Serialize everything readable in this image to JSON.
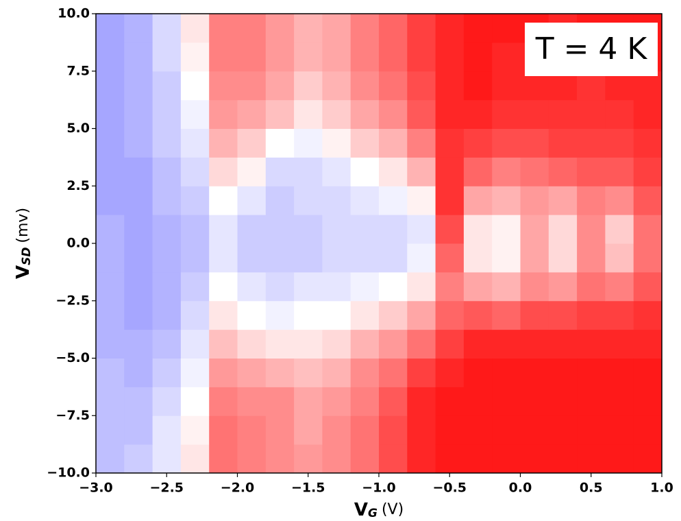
{
  "chart_data": {
    "type": "heatmap",
    "x_label": {
      "symbol": "V",
      "subscript": "G",
      "unit": "(V)"
    },
    "y_label": {
      "symbol": "V",
      "subscript": "SD",
      "unit": "(mv)"
    },
    "annotation": "T = 4 K",
    "xlim": [
      -3,
      1
    ],
    "ylim": [
      -10,
      10
    ],
    "xticks": [
      {
        "value": -3,
        "label": "−3.0"
      },
      {
        "value": -2.5,
        "label": "−2.5"
      },
      {
        "value": -2,
        "label": "−2.0"
      },
      {
        "value": -1.5,
        "label": "−1.5"
      },
      {
        "value": -1,
        "label": "−1.0"
      },
      {
        "value": -0.5,
        "label": "−0.5"
      },
      {
        "value": 0,
        "label": "0.0"
      },
      0.5,
      {
        "value": 1,
        "label": "1.0"
      }
    ],
    "yticks": [
      {
        "value": -10,
        "label": "−10.0"
      },
      {
        "value": -7.5,
        "label": "−7.5"
      },
      {
        "value": -5,
        "label": "−5.0"
      },
      {
        "value": -2.5,
        "label": "−2.5"
      },
      {
        "value": 0,
        "label": "0.0"
      },
      2.5,
      {
        "value": 5,
        "label": "5.0"
      },
      7.5,
      {
        "value": 10,
        "label": "10.0"
      }
    ],
    "colormap": "bwr",
    "zlim": [
      -1,
      1
    ],
    "xbins": [
      -3,
      -2.8,
      -2.6,
      -2.4,
      -2.2,
      -2,
      -1.8,
      -1.6,
      -1.4,
      -1.2,
      -1,
      -0.8,
      -0.6,
      -0.4,
      -0.2,
      0,
      0.2,
      0.4,
      0.6,
      0.8,
      1
    ],
    "ybins": [
      -10,
      -8.75,
      -7.5,
      -6.25,
      -5,
      -3.75,
      -2.5,
      -1.25,
      0,
      1.25,
      2.5,
      3.75,
      5,
      6.25,
      7.5,
      8.75,
      10
    ],
    "z": [
      [
        -0.25,
        -0.2,
        -0.1,
        0.1,
        0.55,
        0.5,
        0.45,
        0.4,
        0.45,
        0.55,
        0.7,
        0.85,
        0.9,
        0.9,
        0.9,
        0.9,
        0.9,
        0.9,
        0.9,
        0.9
      ],
      [
        -0.25,
        -0.25,
        -0.1,
        0.05,
        0.55,
        0.5,
        0.45,
        0.35,
        0.45,
        0.55,
        0.7,
        0.85,
        0.9,
        0.9,
        0.9,
        0.9,
        0.9,
        0.9,
        0.9,
        0.9
      ],
      [
        -0.25,
        -0.25,
        -0.15,
        0.0,
        0.5,
        0.45,
        0.45,
        0.35,
        0.4,
        0.5,
        0.65,
        0.85,
        0.9,
        0.9,
        0.9,
        0.9,
        0.9,
        0.9,
        0.9,
        0.9
      ],
      [
        -0.25,
        -0.3,
        -0.2,
        -0.05,
        0.4,
        0.35,
        0.3,
        0.25,
        0.3,
        0.45,
        0.55,
        0.75,
        0.85,
        0.9,
        0.9,
        0.9,
        0.9,
        0.9,
        0.9,
        0.9
      ],
      [
        -0.3,
        -0.3,
        -0.25,
        -0.1,
        0.25,
        0.15,
        0.1,
        0.1,
        0.15,
        0.3,
        0.4,
        0.55,
        0.75,
        0.85,
        0.85,
        0.85,
        0.85,
        0.85,
        0.85,
        0.85
      ],
      [
        -0.3,
        -0.35,
        -0.3,
        -0.15,
        0.1,
        0.0,
        -0.05,
        0.0,
        0.0,
        0.1,
        0.2,
        0.35,
        0.6,
        0.65,
        0.6,
        0.7,
        0.7,
        0.75,
        0.75,
        0.8
      ],
      [
        -0.3,
        -0.35,
        -0.3,
        -0.2,
        0.0,
        -0.1,
        -0.15,
        -0.1,
        -0.1,
        -0.05,
        0.0,
        0.1,
        0.5,
        0.35,
        0.3,
        0.45,
        0.4,
        0.55,
        0.5,
        0.65
      ],
      [
        -0.3,
        -0.35,
        -0.3,
        -0.25,
        -0.1,
        -0.2,
        -0.2,
        -0.2,
        -0.15,
        -0.15,
        -0.15,
        -0.05,
        0.6,
        0.1,
        0.05,
        0.35,
        0.15,
        0.45,
        0.25,
        0.55
      ],
      [
        -0.3,
        -0.35,
        -0.3,
        -0.25,
        -0.1,
        -0.2,
        -0.2,
        -0.2,
        -0.15,
        -0.15,
        -0.15,
        -0.1,
        0.7,
        0.1,
        0.05,
        0.35,
        0.15,
        0.45,
        0.2,
        0.55
      ],
      [
        -0.35,
        -0.35,
        -0.25,
        -0.2,
        0.0,
        -0.1,
        -0.2,
        -0.15,
        -0.15,
        -0.1,
        -0.05,
        0.05,
        0.8,
        0.35,
        0.3,
        0.4,
        0.35,
        0.5,
        0.45,
        0.65
      ],
      [
        -0.35,
        -0.35,
        -0.25,
        -0.15,
        0.15,
        0.05,
        -0.15,
        -0.15,
        -0.1,
        0.0,
        0.1,
        0.3,
        0.8,
        0.6,
        0.5,
        0.55,
        0.6,
        0.65,
        0.65,
        0.75
      ],
      [
        -0.35,
        -0.3,
        -0.2,
        -0.1,
        0.3,
        0.2,
        0.0,
        -0.05,
        0.05,
        0.2,
        0.3,
        0.5,
        0.8,
        0.75,
        0.7,
        0.7,
        0.75,
        0.75,
        0.75,
        0.8
      ],
      [
        -0.35,
        -0.3,
        -0.2,
        -0.05,
        0.4,
        0.35,
        0.25,
        0.1,
        0.2,
        0.35,
        0.45,
        0.65,
        0.85,
        0.85,
        0.8,
        0.8,
        0.8,
        0.8,
        0.8,
        0.85
      ],
      [
        -0.35,
        -0.3,
        -0.2,
        0.0,
        0.45,
        0.45,
        0.35,
        0.2,
        0.3,
        0.45,
        0.55,
        0.7,
        0.85,
        0.9,
        0.85,
        0.85,
        0.85,
        0.8,
        0.85,
        0.85
      ],
      [
        -0.35,
        -0.3,
        -0.15,
        0.05,
        0.5,
        0.5,
        0.4,
        0.3,
        0.35,
        0.5,
        0.6,
        0.75,
        0.85,
        0.9,
        0.85,
        0.85,
        0.85,
        0.85,
        0.85,
        0.9
      ],
      [
        -0.35,
        -0.3,
        -0.15,
        0.1,
        0.5,
        0.5,
        0.4,
        0.3,
        0.35,
        0.5,
        0.6,
        0.75,
        0.85,
        0.9,
        0.9,
        0.9,
        0.85,
        0.9,
        0.9,
        0.9
      ]
    ]
  }
}
